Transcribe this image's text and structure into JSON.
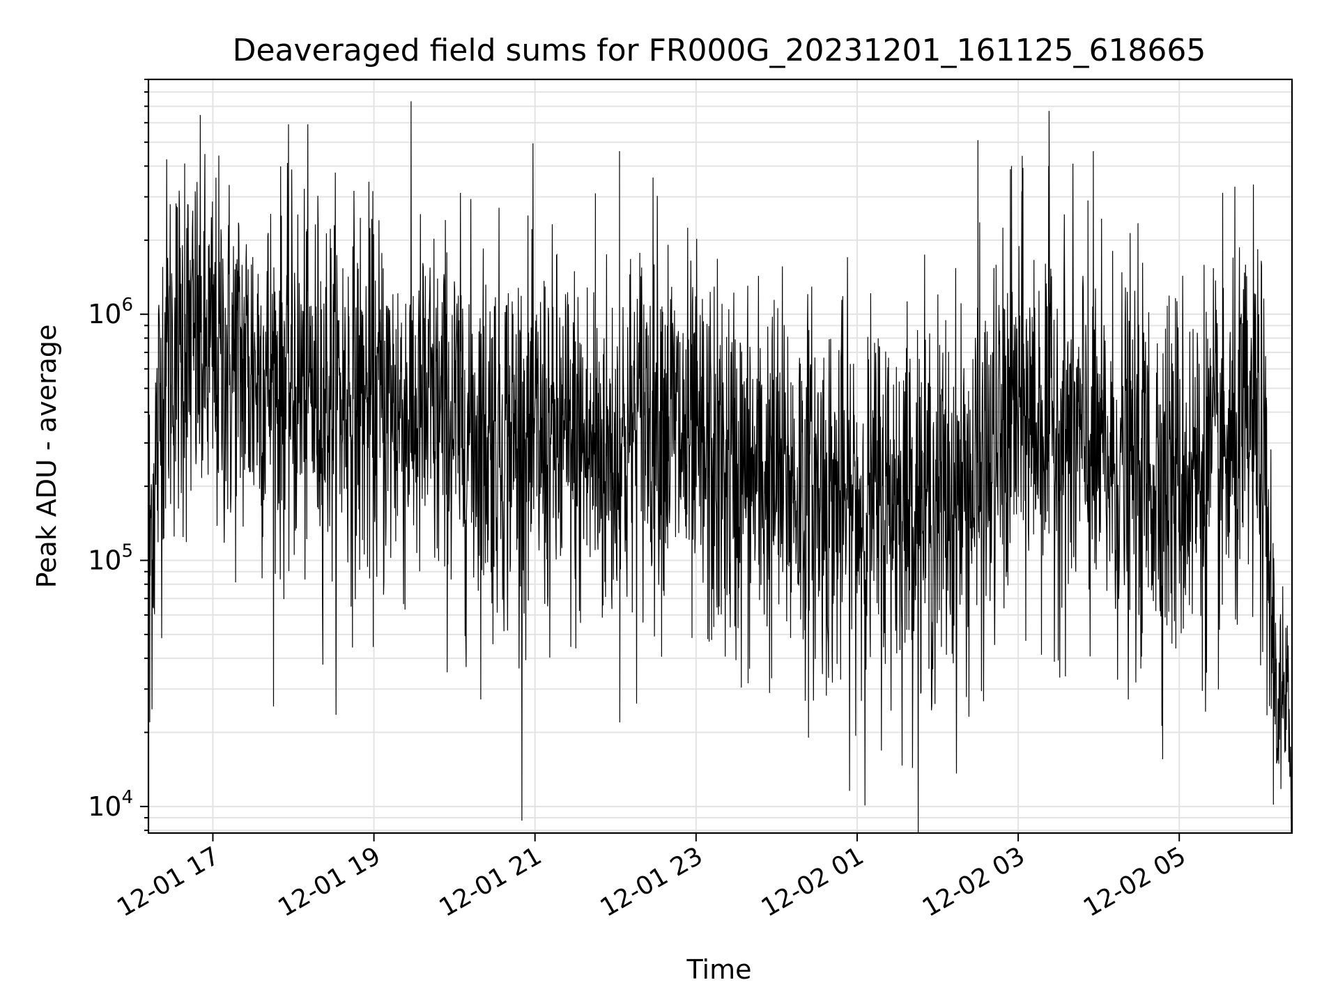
{
  "chart_data": {
    "type": "line",
    "title": "Deaveraged field sums for FR000G_20231201_161125_618665",
    "xlabel": "Time",
    "ylabel": "Peak ADU - average",
    "y_scale": "log",
    "xlim": [
      "12-01 16:12",
      "12-02 06:24"
    ],
    "ylim": [
      7800,
      9000000
    ],
    "grid": true,
    "x_ticks": [
      "12-01 17",
      "12-01 19",
      "12-01 21",
      "12-01 23",
      "12-02 01",
      "12-02 03",
      "12-02 05"
    ],
    "y_ticks": [
      {
        "base": "10",
        "exp": "4",
        "value": 10000
      },
      {
        "base": "10",
        "exp": "5",
        "value": 100000
      },
      {
        "base": "10",
        "exp": "6",
        "value": 1000000
      }
    ],
    "line_color": "#000000",
    "series": [
      {
        "x": [
          "12-01 16:12",
          "12-01 16:24",
          "12-01 16:36",
          "12-01 16:48",
          "12-01 17:00",
          "12-01 17:30",
          "12-01 18:00",
          "12-01 18:30",
          "12-01 19:00",
          "12-01 19:30",
          "12-01 20:00",
          "12-01 20:30",
          "12-01 21:00",
          "12-01 21:30",
          "12-01 22:00",
          "12-01 22:30",
          "12-01 23:00",
          "12-01 23:30",
          "12-02 00:00",
          "12-02 00:30",
          "12-02 01:00",
          "12-02 01:30",
          "12-02 02:00",
          "12-02 02:30",
          "12-02 03:00",
          "12-02 03:30",
          "12-02 04:00",
          "12-02 04:30",
          "12-02 05:00",
          "12-02 05:30",
          "12-02 06:00",
          "12-02 06:12",
          "12-02 06:24"
        ],
        "y_median": [
          100000,
          700000,
          750000,
          720000,
          650000,
          600000,
          520000,
          480000,
          430000,
          400000,
          360000,
          330000,
          300000,
          280000,
          260000,
          450000,
          250000,
          220000,
          210000,
          190000,
          160000,
          180000,
          170000,
          200000,
          400000,
          350000,
          250000,
          230000,
          220000,
          240000,
          350000,
          30000,
          18000
        ],
        "spikes": [
          {
            "x": "12-01 16:39",
            "y": 4100000
          },
          {
            "x": "12-01 16:47",
            "y": 3000000
          },
          {
            "x": "12-01 21:45",
            "y": 3100000
          },
          {
            "x": "12-01 22:03",
            "y": 4600000
          },
          {
            "x": "12-02 02:30",
            "y": 5100000
          },
          {
            "x": "12-02 02:55",
            "y": 4000000
          },
          {
            "x": "12-02 03:03",
            "y": 4400000
          },
          {
            "x": "12-02 03:23",
            "y": 6700000
          },
          {
            "x": "12-02 03:52",
            "y": 2900000
          },
          {
            "x": "12-02 03:56",
            "y": 4600000
          }
        ],
        "dips": [
          {
            "x": "12-01 16:13",
            "y": 22000
          },
          {
            "x": "12-02 00:21",
            "y": 52000
          },
          {
            "x": "12-02 04:30",
            "y": 60000
          }
        ]
      }
    ]
  }
}
